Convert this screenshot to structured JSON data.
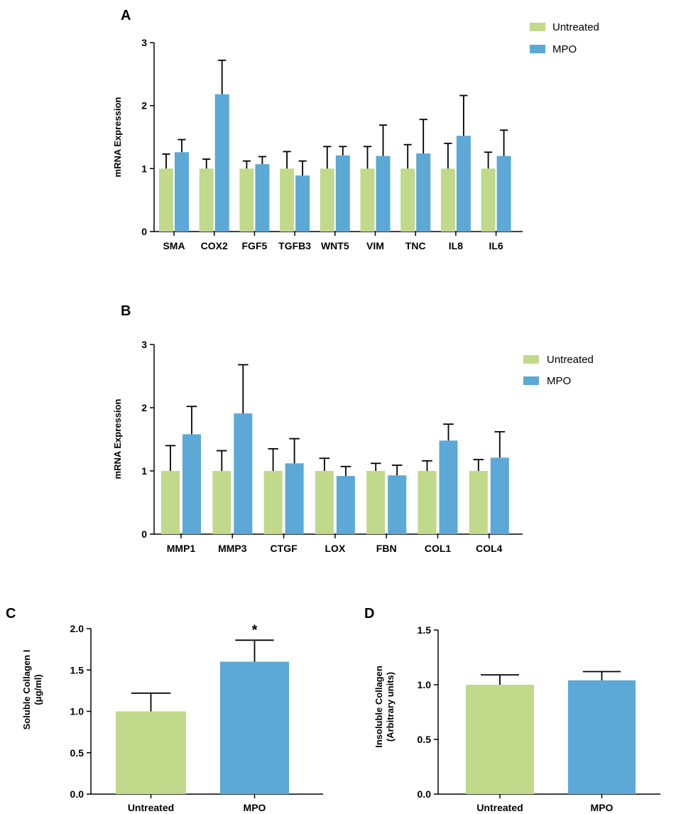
{
  "colors": {
    "untreated": "#c1d98a",
    "mpo": "#5ca8d6",
    "axis": "#000000"
  },
  "chart_data": [
    {
      "panel": "A",
      "type": "bar",
      "title": "",
      "ylabel": "mRNA Expression",
      "xlabel": "",
      "ylim": [
        0,
        3
      ],
      "yticks": [
        "0",
        "1",
        "2",
        "3"
      ],
      "legend": [
        "Untreated",
        "MPO"
      ],
      "legend_position": "top-right",
      "categories": [
        "SMA",
        "COX2",
        "FGF5",
        "TGFB3",
        "WNT5",
        "VIM",
        "TNC",
        "IL8",
        "IL6"
      ],
      "series": [
        {
          "name": "Untreated",
          "values": [
            1.0,
            1.0,
            1.0,
            1.0,
            1.0,
            1.0,
            1.0,
            1.0,
            1.0
          ],
          "errors": [
            0.23,
            0.15,
            0.12,
            0.27,
            0.35,
            0.35,
            0.38,
            0.4,
            0.26
          ]
        },
        {
          "name": "MPO",
          "values": [
            1.26,
            2.18,
            1.07,
            0.89,
            1.21,
            1.2,
            1.24,
            1.52,
            1.2
          ],
          "errors": [
            0.2,
            0.54,
            0.12,
            0.23,
            0.14,
            0.49,
            0.54,
            0.64,
            0.41
          ]
        }
      ]
    },
    {
      "panel": "B",
      "type": "bar",
      "title": "",
      "ylabel": "mRNA Expression",
      "xlabel": "",
      "ylim": [
        0,
        3
      ],
      "yticks": [
        "0",
        "1",
        "2",
        "3"
      ],
      "legend": [
        "Untreated",
        "MPO"
      ],
      "legend_position": "right",
      "categories": [
        "MMP1",
        "MMP3",
        "CTGF",
        "LOX",
        "FBN",
        "COL1",
        "COL4"
      ],
      "series": [
        {
          "name": "Untreated",
          "values": [
            1.0,
            1.0,
            1.0,
            1.0,
            1.0,
            1.0,
            1.0
          ],
          "errors": [
            0.4,
            0.32,
            0.35,
            0.2,
            0.12,
            0.16,
            0.18
          ]
        },
        {
          "name": "MPO",
          "values": [
            1.58,
            1.91,
            1.12,
            0.92,
            0.93,
            1.48,
            1.21
          ],
          "errors": [
            0.44,
            0.77,
            0.39,
            0.15,
            0.16,
            0.26,
            0.41
          ]
        }
      ]
    },
    {
      "panel": "C",
      "type": "bar",
      "title": "",
      "ylabel": "Soluble Collagen I",
      "ylabel2": "(μg/ml)",
      "xlabel": "",
      "ylim": [
        0,
        2
      ],
      "yticks": [
        "0.0",
        "0.5",
        "1.0",
        "1.5",
        "2.0"
      ],
      "categories": [
        "Untreated",
        "MPO"
      ],
      "values": [
        1.0,
        1.6
      ],
      "errors": [
        0.22,
        0.26
      ],
      "annotations": [
        "",
        "*"
      ]
    },
    {
      "panel": "D",
      "type": "bar",
      "title": "",
      "ylabel": "Insoluble Collagen",
      "ylabel2": "(Arbitrary units)",
      "xlabel": "",
      "ylim": [
        0,
        1.5
      ],
      "yticks": [
        "0.0",
        "0.5",
        "1.0",
        "1.5"
      ],
      "categories": [
        "Untreated",
        "MPO"
      ],
      "values": [
        1.0,
        1.04
      ],
      "errors": [
        0.09,
        0.08
      ],
      "annotations": [
        "",
        ""
      ]
    }
  ]
}
